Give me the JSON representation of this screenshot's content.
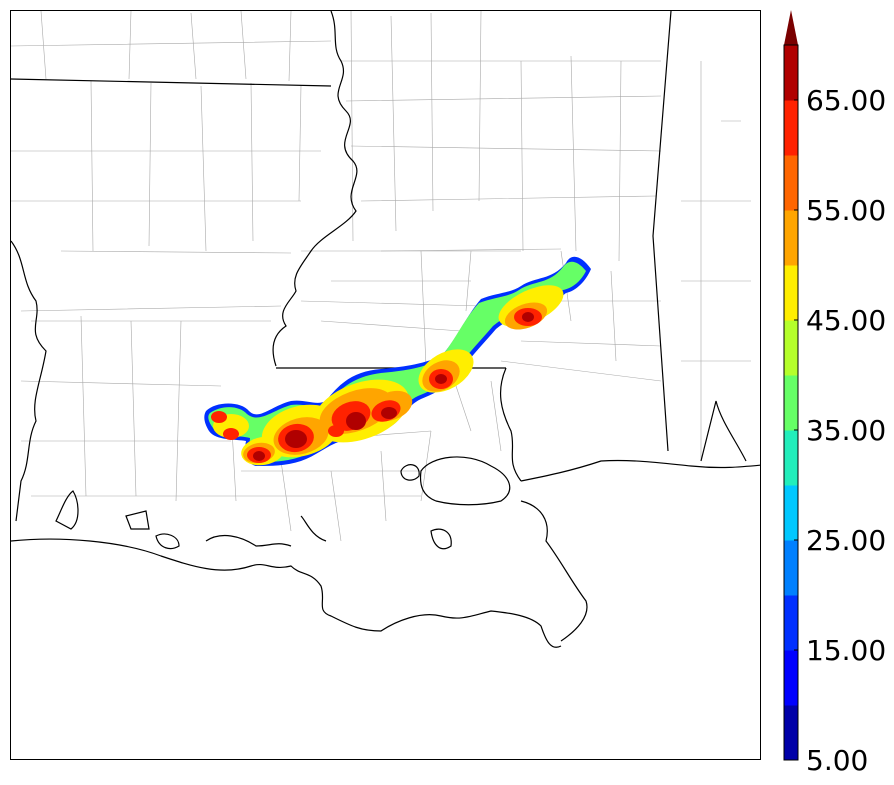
{
  "colorbar": {
    "levels": [
      5,
      10,
      15,
      20,
      25,
      30,
      35,
      40,
      45,
      50,
      55,
      60,
      65,
      70
    ],
    "colors": [
      "#0000a8",
      "#0000ff",
      "#0030ff",
      "#0080ff",
      "#00c8ff",
      "#22eebb",
      "#66ff66",
      "#b5ff2b",
      "#ffee00",
      "#ffa500",
      "#ff6600",
      "#ff2200",
      "#b00000"
    ],
    "extend_color": "#7a0000",
    "ticks": [
      {
        "value": 5,
        "label": "5.00"
      },
      {
        "value": 15,
        "label": "15.00"
      },
      {
        "value": 25,
        "label": "25.00"
      },
      {
        "value": 35,
        "label": "35.00"
      },
      {
        "value": 45,
        "label": "45.00"
      },
      {
        "value": 55,
        "label": "55.00"
      },
      {
        "value": 65,
        "label": "65.00"
      }
    ]
  },
  "map": {
    "boundary_color": "#000000",
    "county_color": "#9a9a9a",
    "background": "#ffffff"
  }
}
